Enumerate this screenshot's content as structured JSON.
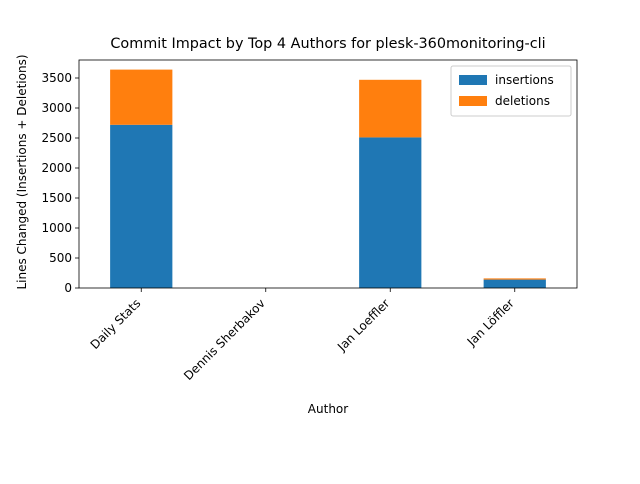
{
  "chart_data": {
    "type": "bar",
    "stacked": true,
    "title": "Commit Impact by Top 4 Authors for plesk-360monitoring-cli",
    "xlabel": "Author",
    "ylabel": "Lines Changed (Insertions + Deletions)",
    "categories": [
      "Daily Stats",
      "Dennis Sherbakov",
      "Jan Loeffler",
      "Jan Löffler"
    ],
    "series": [
      {
        "name": "insertions",
        "color": "#1f77b4",
        "values": [
          2720,
          0,
          2510,
          140
        ]
      },
      {
        "name": "deletions",
        "color": "#ff7f0e",
        "values": [
          920,
          0,
          960,
          20
        ]
      }
    ],
    "ylim": [
      0,
      3800
    ],
    "yticks": [
      0,
      500,
      1000,
      1500,
      2000,
      2500,
      3000,
      3500
    ],
    "grid": false,
    "legend_position": "top-right"
  }
}
